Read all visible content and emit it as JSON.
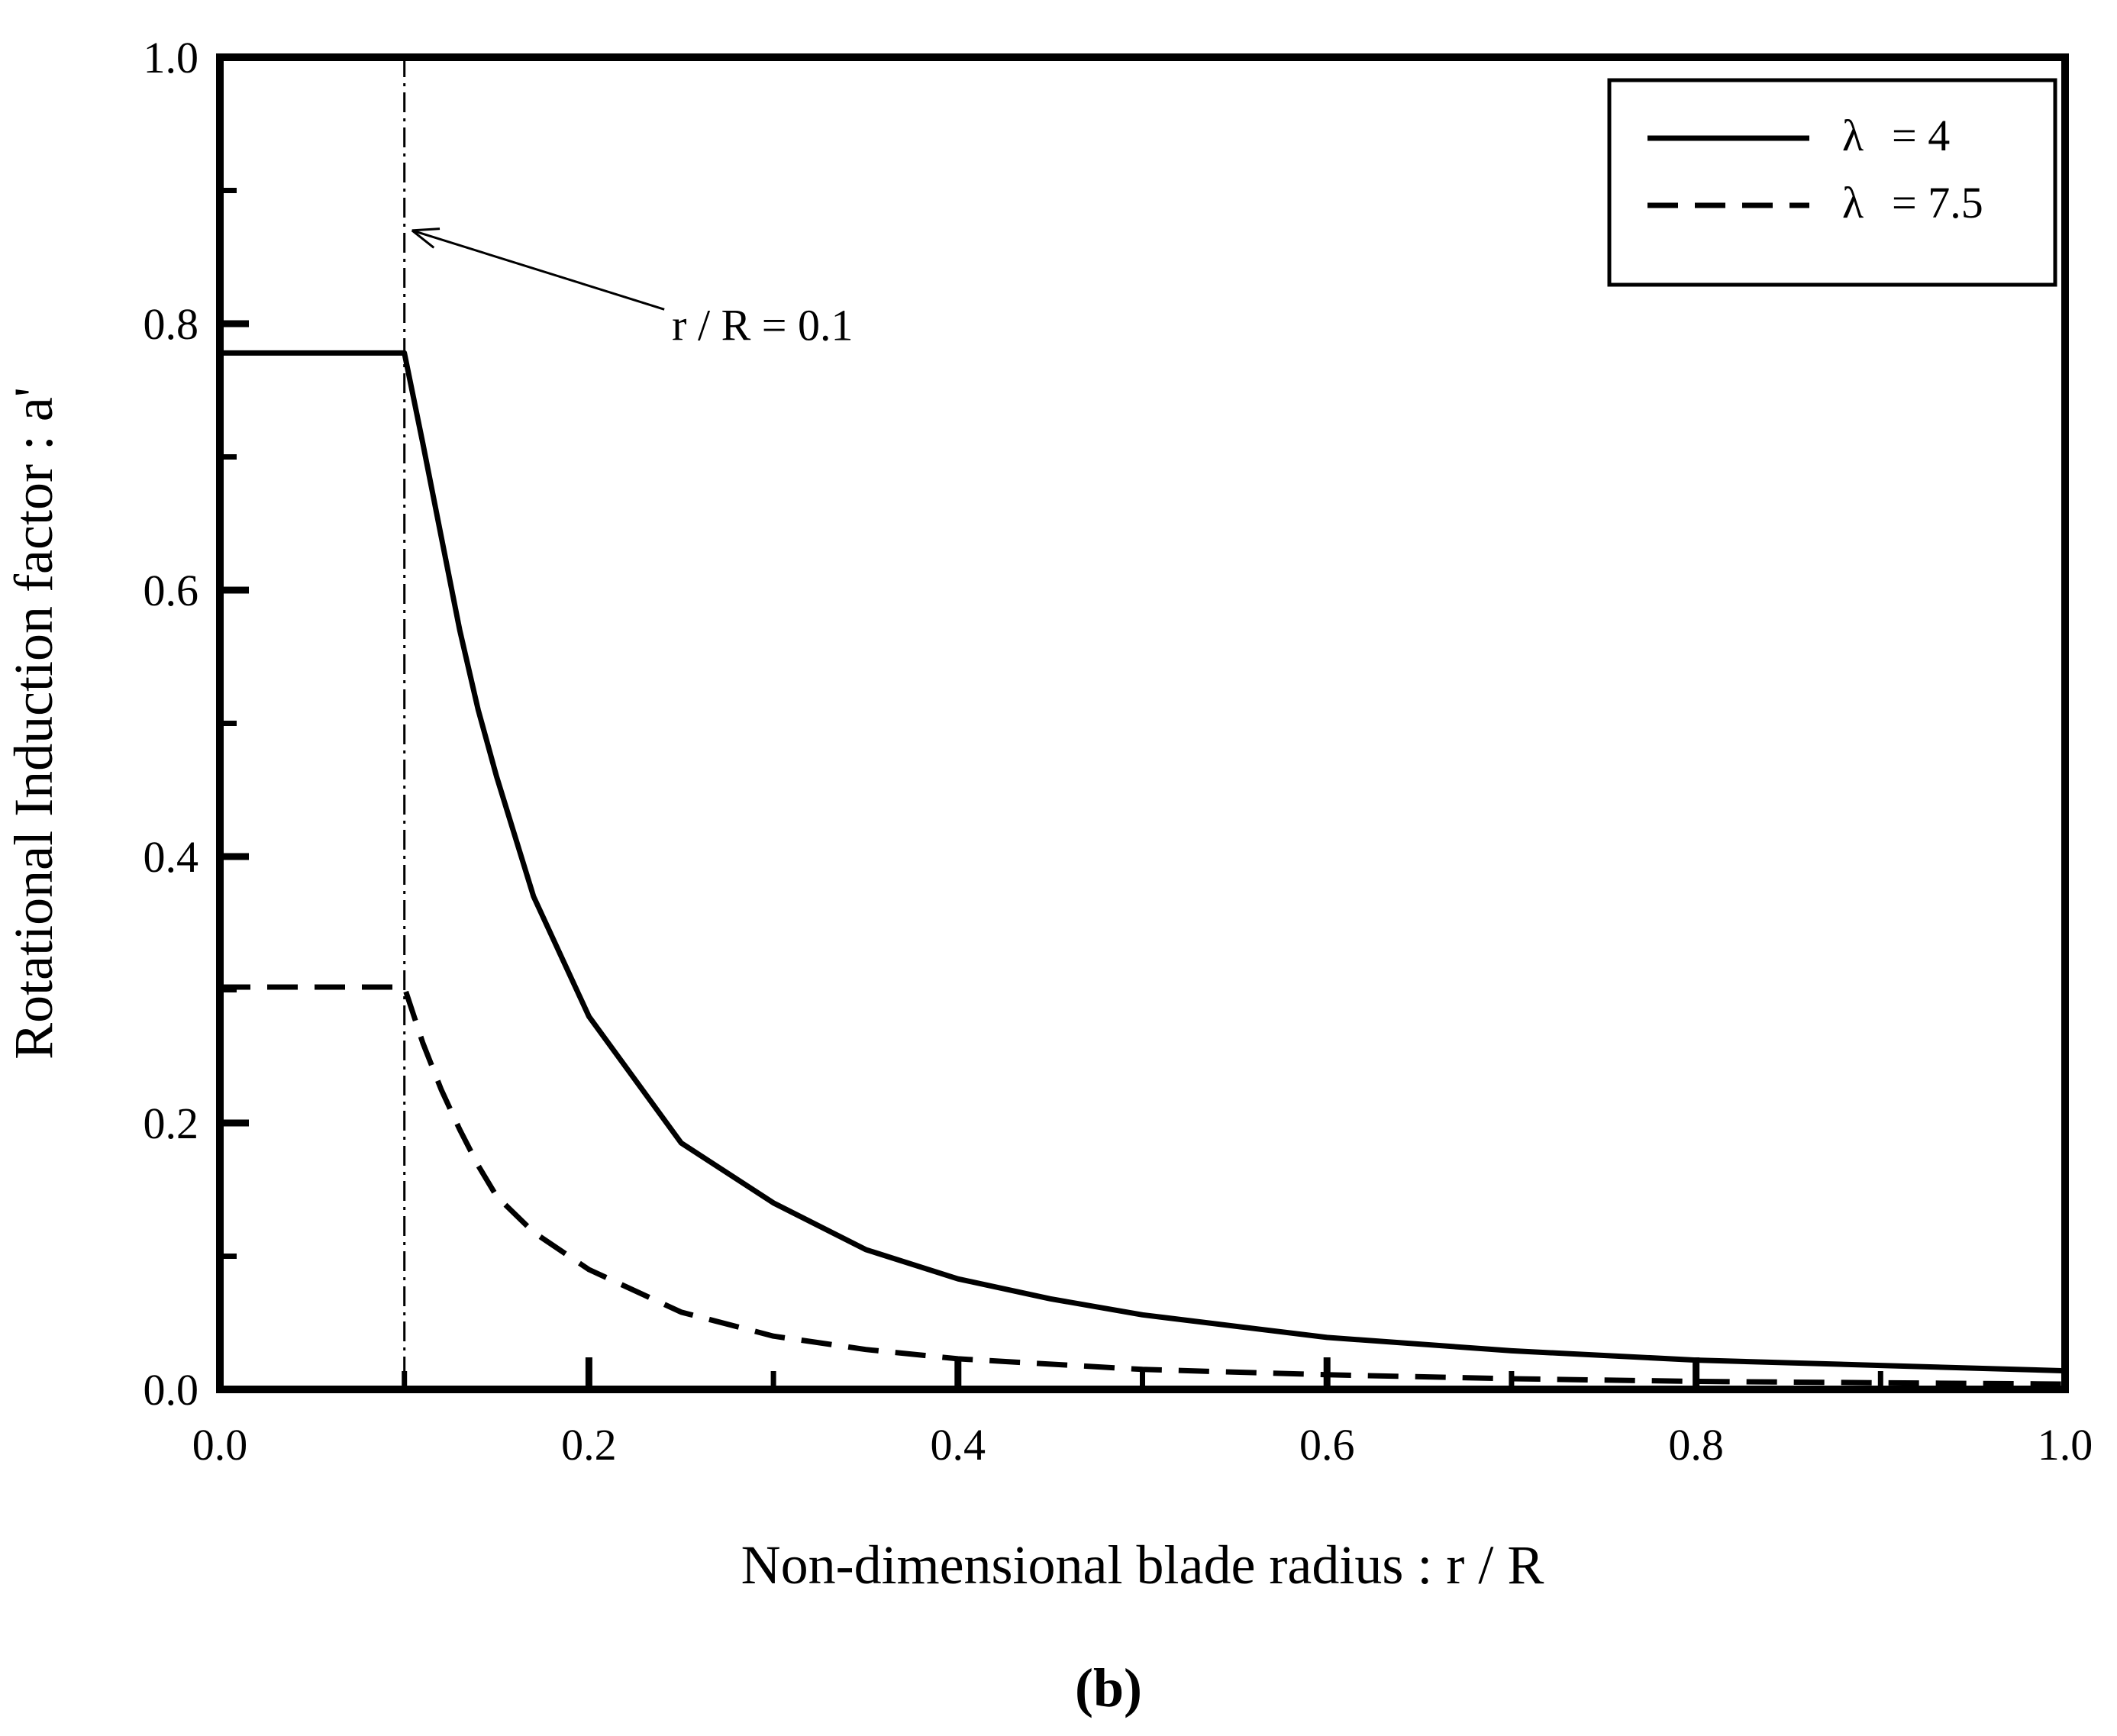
{
  "chart_data": {
    "type": "line",
    "title": "",
    "panel_label": "(b)",
    "xlabel": "Non-dimensional blade radius : r / R",
    "ylabel": "Rotational Induction factor : a'",
    "xlim": [
      0,
      1
    ],
    "ylim": [
      0,
      1
    ],
    "x_ticks": [
      0.0,
      0.2,
      0.4,
      0.6,
      0.8,
      1.0
    ],
    "y_ticks": [
      0.0,
      0.2,
      0.4,
      0.6,
      0.8,
      1.0
    ],
    "x_tick_labels": [
      "0.0",
      "0.2",
      "0.4",
      "0.6",
      "0.8",
      "1.0"
    ],
    "y_tick_labels": [
      "0.0",
      "0.2",
      "0.4",
      "0.6",
      "0.8",
      "1.0"
    ],
    "grid": false,
    "legend_position": "top-right",
    "series": [
      {
        "name": "λ = 4",
        "legend_symbol": "λ",
        "legend_value": "= 4",
        "line_style": "solid",
        "x": [
          0.0,
          0.1,
          0.11,
          0.12,
          0.13,
          0.14,
          0.15,
          0.17,
          0.2,
          0.25,
          0.3,
          0.35,
          0.4,
          0.45,
          0.5,
          0.6,
          0.7,
          0.8,
          0.9,
          1.0
        ],
        "y": [
          0.778,
          0.778,
          0.71,
          0.64,
          0.57,
          0.51,
          0.46,
          0.37,
          0.28,
          0.185,
          0.14,
          0.105,
          0.083,
          0.068,
          0.056,
          0.039,
          0.029,
          0.022,
          0.018,
          0.014
        ]
      },
      {
        "name": "λ = 7.5",
        "legend_symbol": "λ",
        "legend_value": "= 7.5",
        "line_style": "dashed",
        "x": [
          0.0,
          0.1,
          0.11,
          0.12,
          0.13,
          0.14,
          0.15,
          0.17,
          0.2,
          0.25,
          0.3,
          0.35,
          0.4,
          0.5,
          0.6,
          0.7,
          0.8,
          0.9,
          1.0
        ],
        "y": [
          0.302,
          0.302,
          0.26,
          0.225,
          0.195,
          0.168,
          0.145,
          0.118,
          0.09,
          0.058,
          0.04,
          0.03,
          0.023,
          0.015,
          0.011,
          0.008,
          0.006,
          0.005,
          0.004
        ]
      }
    ],
    "annotations": [
      {
        "text": "r / R = 0.1",
        "vline_x": 0.1,
        "arrow_target_y": 0.87,
        "line_style": "dash-dot"
      }
    ]
  }
}
